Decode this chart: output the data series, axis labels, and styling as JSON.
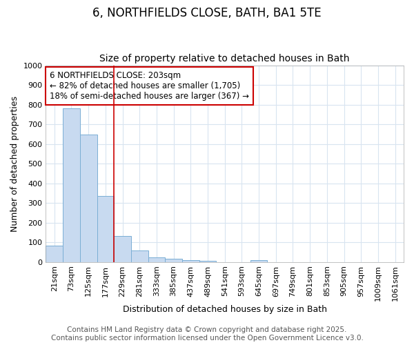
{
  "title": "6, NORTHFIELDS CLOSE, BATH, BA1 5TE",
  "subtitle": "Size of property relative to detached houses in Bath",
  "xlabel": "Distribution of detached houses by size in Bath",
  "ylabel": "Number of detached properties",
  "bar_labels": [
    "21sqm",
    "73sqm",
    "125sqm",
    "177sqm",
    "229sqm",
    "281sqm",
    "333sqm",
    "385sqm",
    "437sqm",
    "489sqm",
    "541sqm",
    "593sqm",
    "645sqm",
    "697sqm",
    "749sqm",
    "801sqm",
    "853sqm",
    "905sqm",
    "957sqm",
    "1009sqm",
    "1061sqm"
  ],
  "bar_values": [
    83,
    780,
    648,
    335,
    133,
    58,
    25,
    18,
    10,
    5,
    0,
    0,
    8,
    0,
    0,
    0,
    0,
    0,
    0,
    0,
    0
  ],
  "bar_color": "#c8daf0",
  "bar_edge_color": "#7aaed4",
  "ylim": [
    0,
    1000
  ],
  "yticks": [
    0,
    100,
    200,
    300,
    400,
    500,
    600,
    700,
    800,
    900,
    1000
  ],
  "red_line_x": 3.5,
  "annotation_text": "6 NORTHFIELDS CLOSE: 203sqm\n← 82% of detached houses are smaller (1,705)\n18% of semi-detached houses are larger (367) →",
  "annotation_box_color": "#ffffff",
  "annotation_border_color": "#cc0000",
  "footer_line1": "Contains HM Land Registry data © Crown copyright and database right 2025.",
  "footer_line2": "Contains public sector information licensed under the Open Government Licence v3.0.",
  "background_color": "#ffffff",
  "grid_color": "#d8e4f0",
  "title_fontsize": 12,
  "subtitle_fontsize": 10,
  "tick_fontsize": 8,
  "ylabel_fontsize": 9,
  "xlabel_fontsize": 9,
  "footer_fontsize": 7.5,
  "annotation_fontsize": 8.5
}
